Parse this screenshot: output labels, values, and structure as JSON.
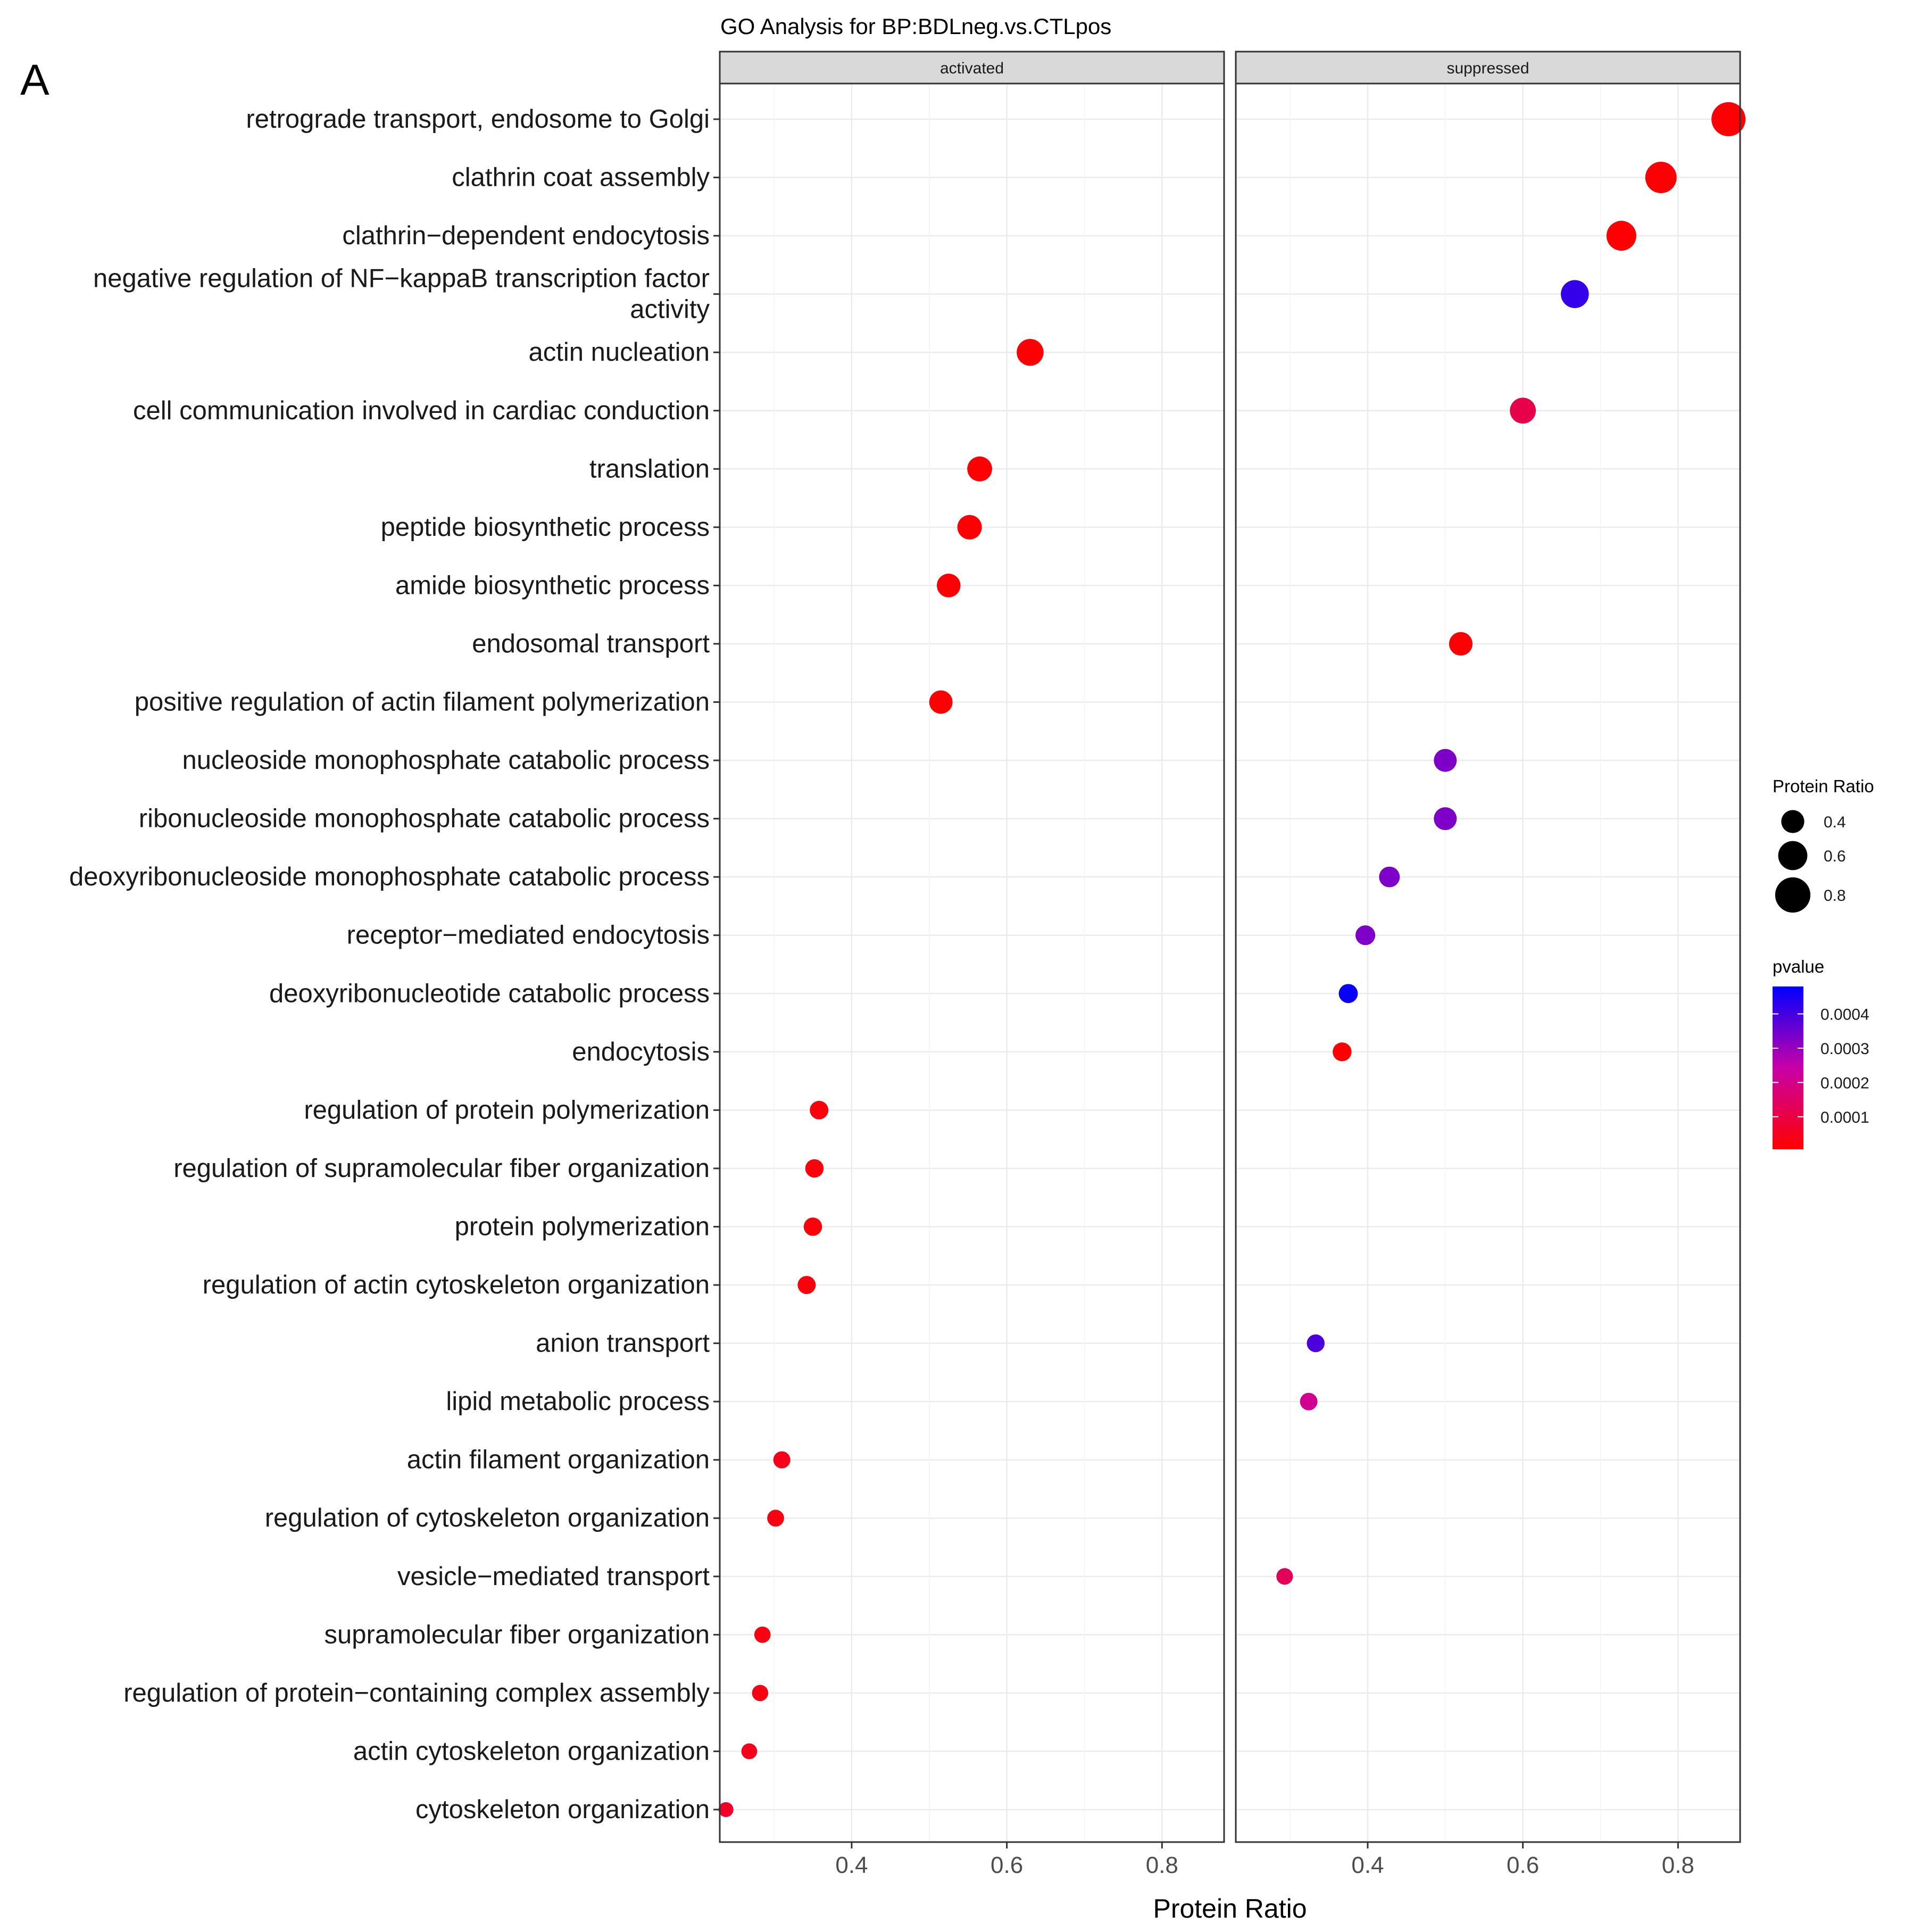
{
  "panel_letter": "A",
  "chart_data": {
    "type": "scatter",
    "title": "GO Analysis for BP:BDLneg.vs.CTLpos",
    "xlabel": "Protein Ratio",
    "ylabel": "",
    "xlim": [
      0.23,
      0.88
    ],
    "x_ticks": [
      0.4,
      0.6,
      0.8
    ],
    "x_tick_labels": [
      "0.4",
      "0.6",
      "0.8"
    ],
    "grid": true,
    "facets": [
      "activated",
      "suppressed"
    ],
    "categories": [
      "retrograde transport, endosome to Golgi",
      "clathrin coat assembly",
      "clathrin−dependent endocytosis",
      "negative regulation of NF−kappaB transcription factor activity",
      "actin nucleation",
      "cell communication involved in cardiac conduction",
      "translation",
      "peptide biosynthetic process",
      "amide biosynthetic process",
      "endosomal transport",
      "positive regulation of actin filament polymerization",
      "nucleoside monophosphate catabolic process",
      "ribonucleoside monophosphate catabolic process",
      "deoxyribonucleoside monophosphate catabolic process",
      "receptor−mediated endocytosis",
      "deoxyribonucleotide catabolic process",
      "endocytosis",
      "regulation of protein polymerization",
      "regulation of supramolecular fiber organization",
      "protein polymerization",
      "regulation of actin cytoskeleton organization",
      "anion transport",
      "lipid metabolic process",
      "actin filament organization",
      "regulation of cytoskeleton organization",
      "vesicle−mediated transport",
      "supramolecular fiber organization",
      "regulation of protein−containing complex assembly",
      "actin cytoskeleton organization",
      "cytoskeleton organization"
    ],
    "category_display_lines": [
      [
        "retrograde transport, endosome to Golgi"
      ],
      [
        "clathrin coat assembly"
      ],
      [
        "clathrin−dependent endocytosis"
      ],
      [
        "negative regulation of NF−kappaB transcription factor",
        "activity"
      ],
      [
        "actin nucleation"
      ],
      [
        "cell communication involved in cardiac conduction"
      ],
      [
        "translation"
      ],
      [
        "peptide biosynthetic process"
      ],
      [
        "amide biosynthetic process"
      ],
      [
        "endosomal transport"
      ],
      [
        "positive regulation of actin filament polymerization"
      ],
      [
        "nucleoside monophosphate catabolic process"
      ],
      [
        "ribonucleoside monophosphate catabolic process"
      ],
      [
        "deoxyribonucleoside monophosphate catabolic process"
      ],
      [
        "receptor−mediated endocytosis"
      ],
      [
        "deoxyribonucleotide catabolic process"
      ],
      [
        "endocytosis"
      ],
      [
        "regulation of protein polymerization"
      ],
      [
        "regulation of supramolecular fiber organization"
      ],
      [
        "protein polymerization"
      ],
      [
        "regulation of actin cytoskeleton organization"
      ],
      [
        "anion transport"
      ],
      [
        "lipid metabolic process"
      ],
      [
        "actin filament organization"
      ],
      [
        "regulation of cytoskeleton organization"
      ],
      [
        "vesicle−mediated transport"
      ],
      [
        "supramolecular fiber organization"
      ],
      [
        "regulation of protein−containing complex assembly"
      ],
      [
        "actin cytoskeleton organization"
      ],
      [
        "cytoskeleton organization"
      ]
    ],
    "points": [
      {
        "facet": "activated",
        "term": "actin nucleation",
        "x": 0.63,
        "pvalue": 1e-05
      },
      {
        "facet": "activated",
        "term": "translation",
        "x": 0.565,
        "pvalue": 1e-05
      },
      {
        "facet": "activated",
        "term": "peptide biosynthetic process",
        "x": 0.552,
        "pvalue": 1e-05
      },
      {
        "facet": "activated",
        "term": "amide biosynthetic process",
        "x": 0.525,
        "pvalue": 1e-05
      },
      {
        "facet": "activated",
        "term": "positive regulation of actin filament polymerization",
        "x": 0.515,
        "pvalue": 1e-05
      },
      {
        "facet": "activated",
        "term": "regulation of protein polymerization",
        "x": 0.358,
        "pvalue": 2e-05
      },
      {
        "facet": "activated",
        "term": "regulation of supramolecular fiber organization",
        "x": 0.352,
        "pvalue": 2e-05
      },
      {
        "facet": "activated",
        "term": "protein polymerization",
        "x": 0.35,
        "pvalue": 2e-05
      },
      {
        "facet": "activated",
        "term": "regulation of actin cytoskeleton organization",
        "x": 0.342,
        "pvalue": 2e-05
      },
      {
        "facet": "activated",
        "term": "actin filament organization",
        "x": 0.31,
        "pvalue": 4e-05
      },
      {
        "facet": "activated",
        "term": "regulation of cytoskeleton organization",
        "x": 0.302,
        "pvalue": 3e-05
      },
      {
        "facet": "activated",
        "term": "supramolecular fiber organization",
        "x": 0.285,
        "pvalue": 3e-05
      },
      {
        "facet": "activated",
        "term": "regulation of protein−containing complex assembly",
        "x": 0.282,
        "pvalue": 3e-05
      },
      {
        "facet": "activated",
        "term": "actin cytoskeleton organization",
        "x": 0.268,
        "pvalue": 4e-05
      },
      {
        "facet": "activated",
        "term": "cytoskeleton organization",
        "x": 0.238,
        "pvalue": 6e-05
      },
      {
        "facet": "suppressed",
        "term": "retrograde transport, endosome to Golgi",
        "x": 0.865,
        "pvalue": 1e-05
      },
      {
        "facet": "suppressed",
        "term": "clathrin coat assembly",
        "x": 0.778,
        "pvalue": 1e-05
      },
      {
        "facet": "suppressed",
        "term": "clathrin−dependent endocytosis",
        "x": 0.727,
        "pvalue": 1e-05
      },
      {
        "facet": "suppressed",
        "term": "negative regulation of NF−kappaB transcription factor activity",
        "x": 0.667,
        "pvalue": 0.00042
      },
      {
        "facet": "suppressed",
        "term": "cell communication involved in cardiac conduction",
        "x": 0.6,
        "pvalue": 0.00011
      },
      {
        "facet": "suppressed",
        "term": "endosomal transport",
        "x": 0.52,
        "pvalue": 1e-05
      },
      {
        "facet": "suppressed",
        "term": "nucleoside monophosphate catabolic process",
        "x": 0.5,
        "pvalue": 0.00033
      },
      {
        "facet": "suppressed",
        "term": "ribonucleoside monophosphate catabolic process",
        "x": 0.5,
        "pvalue": 0.00033
      },
      {
        "facet": "suppressed",
        "term": "deoxyribonucleoside monophosphate catabolic process",
        "x": 0.428,
        "pvalue": 0.00033
      },
      {
        "facet": "suppressed",
        "term": "receptor−mediated endocytosis",
        "x": 0.397,
        "pvalue": 0.00033
      },
      {
        "facet": "suppressed",
        "term": "deoxyribonucleotide catabolic process",
        "x": 0.375,
        "pvalue": 0.00047
      },
      {
        "facet": "suppressed",
        "term": "endocytosis",
        "x": 0.367,
        "pvalue": 1e-05
      },
      {
        "facet": "suppressed",
        "term": "anion transport",
        "x": 0.333,
        "pvalue": 0.00039
      },
      {
        "facet": "suppressed",
        "term": "lipid metabolic process",
        "x": 0.324,
        "pvalue": 0.00021
      },
      {
        "facet": "suppressed",
        "term": "vesicle−mediated transport",
        "x": 0.293,
        "pvalue": 0.00013
      }
    ],
    "size_legend": {
      "title": "Protein Ratio",
      "values": [
        0.4,
        0.6,
        0.8
      ],
      "labels": [
        "0.4",
        "0.6",
        "0.8"
      ],
      "color": "#000000"
    },
    "color_legend": {
      "title": "pvalue",
      "min": 5e-06,
      "max": 0.00048,
      "ticks": [
        0.0004,
        0.0003,
        0.0002,
        0.0001
      ],
      "tick_labels": [
        "0.0004",
        "0.0003",
        "0.0002",
        "0.0001"
      ],
      "low_color": "#ff0000",
      "high_color": "#0000ff",
      "position": "right"
    }
  }
}
